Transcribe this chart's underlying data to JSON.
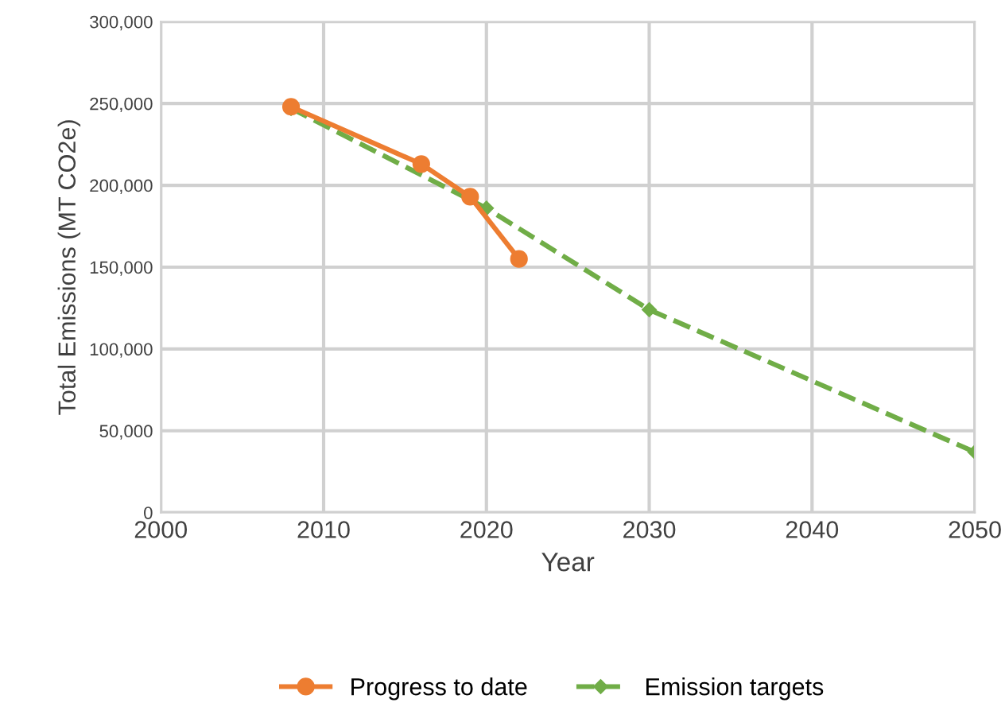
{
  "chart_data": {
    "type": "line",
    "xlabel": "Year",
    "ylabel": "Total Emissions (MT CO2e)",
    "xlim": [
      2000,
      2050
    ],
    "xticks": [
      2000,
      2010,
      2020,
      2030,
      2040,
      2050
    ],
    "ylim": [
      0,
      300000
    ],
    "yticks": [
      {
        "value": 0,
        "label": "0"
      },
      {
        "value": 50000,
        "label": "50,000"
      },
      {
        "value": 100000,
        "label": "100,000"
      },
      {
        "value": 150000,
        "label": "150,000"
      },
      {
        "value": 200000,
        "label": "200,000"
      },
      {
        "value": 250000,
        "label": "250,000"
      },
      {
        "value": 300000,
        "label": "300,000"
      }
    ],
    "grid": true,
    "legend": "bottom",
    "series": [
      {
        "name": "Progress to date",
        "color": "#ed7d31",
        "marker": "circle",
        "line_style": "solid",
        "x": [
          2008,
          2016,
          2019,
          2022
        ],
        "values": [
          248000,
          213000,
          193000,
          155000
        ]
      },
      {
        "name": "Emission targets",
        "color": "#70ad47",
        "marker": "diamond",
        "line_style": "dashed",
        "x": [
          2008,
          2020,
          2030,
          2050
        ],
        "values": [
          247000,
          186000,
          124000,
          37000
        ]
      }
    ]
  }
}
